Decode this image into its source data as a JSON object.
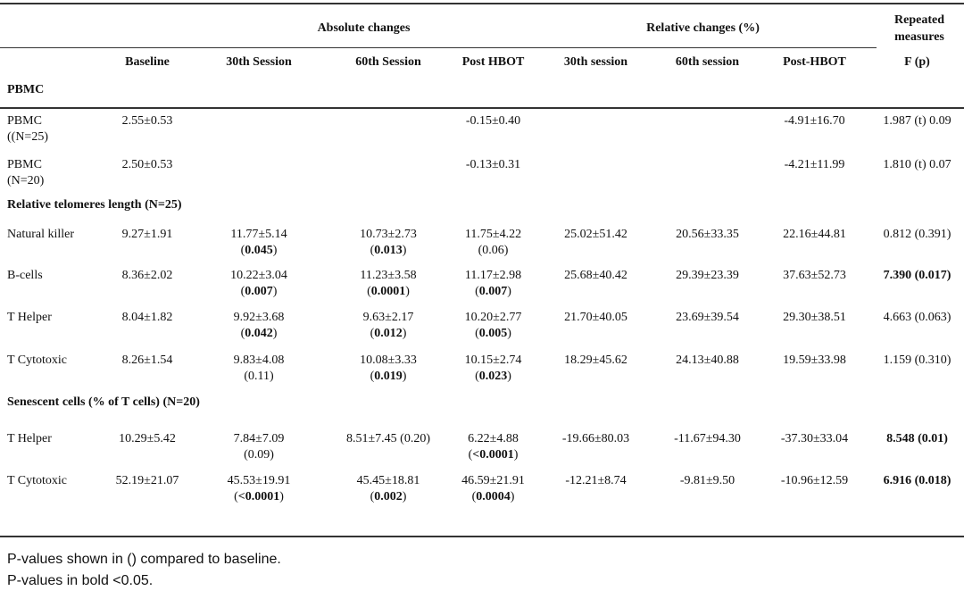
{
  "header": {
    "group_absolute": "Absolute changes",
    "group_relative": "Relative changes (%)",
    "group_repeated": "Repeated measures",
    "columns": [
      "",
      "Baseline",
      "30th Session",
      "60th Session",
      "Post HBOT",
      "30th session",
      "60th session",
      "Post-HBOT",
      "F (p)"
    ]
  },
  "sections": [
    {
      "title": "PBMC",
      "rows": [
        {
          "label": "PBMC ((N=25)",
          "cells": [
            {
              "v": "2.55±0.53"
            },
            {
              "v": ""
            },
            {
              "v": ""
            },
            {
              "v": "-0.15±0.40"
            },
            {
              "v": ""
            },
            {
              "v": ""
            },
            {
              "v": "-4.91±16.70"
            },
            {
              "v": "1.987 (t) 0.09"
            }
          ]
        },
        {
          "label": "PBMC (N=20)",
          "cells": [
            {
              "v": "2.50±0.53"
            },
            {
              "v": ""
            },
            {
              "v": ""
            },
            {
              "v": "-0.13±0.31"
            },
            {
              "v": ""
            },
            {
              "v": ""
            },
            {
              "v": "-4.21±11.99"
            },
            {
              "v": "1.810 (t) 0.07"
            }
          ]
        }
      ]
    },
    {
      "title": "Relative telomeres length (N=25)",
      "rows": [
        {
          "label": "Natural killer",
          "cells": [
            {
              "v": "9.27±1.91"
            },
            {
              "v": "11.77±5.14",
              "p": "0.045",
              "pb": true
            },
            {
              "v": "10.73±2.73",
              "p": "0.013",
              "pb": true
            },
            {
              "v": "11.75±4.22",
              "p": "0.06",
              "pb": false
            },
            {
              "v": "25.02±51.42"
            },
            {
              "v": "20.56±33.35"
            },
            {
              "v": "22.16±44.81"
            },
            {
              "v": "0.812 (0.391)"
            }
          ]
        },
        {
          "label": "B-cells",
          "cells": [
            {
              "v": "8.36±2.02"
            },
            {
              "v": "10.22±3.04",
              "p": "0.007",
              "pb": true
            },
            {
              "v": "11.23±3.58",
              "p": "0.0001",
              "pb": true
            },
            {
              "v": "11.17±2.98",
              "p": "0.007",
              "pb": true
            },
            {
              "v": "25.68±40.42"
            },
            {
              "v": "29.39±23.39"
            },
            {
              "v": "37.63±52.73"
            },
            {
              "v": "7.390 (0.017)",
              "b": true
            }
          ]
        },
        {
          "label": "T Helper",
          "cells": [
            {
              "v": "8.04±1.82"
            },
            {
              "v": "9.92±3.68",
              "p": "0.042",
              "pb": true
            },
            {
              "v": "9.63±2.17",
              "p": "0.012",
              "pb": true
            },
            {
              "v": "10.20±2.77",
              "p": "0.005",
              "pb": true
            },
            {
              "v": "21.70±40.05"
            },
            {
              "v": "23.69±39.54"
            },
            {
              "v": "29.30±38.51"
            },
            {
              "v": "4.663 (0.063)"
            }
          ]
        },
        {
          "label": "T Cytotoxic",
          "cells": [
            {
              "v": "8.26±1.54"
            },
            {
              "v": "9.83±4.08",
              "p": "0.11",
              "pb": false
            },
            {
              "v": "10.08±3.33",
              "p": "0.019",
              "pb": true
            },
            {
              "v": "10.15±2.74",
              "p": "0.023",
              "pb": true
            },
            {
              "v": "18.29±45.62"
            },
            {
              "v": "24.13±40.88"
            },
            {
              "v": "19.59±33.98"
            },
            {
              "v": "1.159 (0.310)"
            }
          ]
        }
      ]
    },
    {
      "title": "Senescent cells (% of T cells) (N=20)",
      "rows": [
        {
          "label": "T Helper",
          "cells": [
            {
              "v": "10.29±5.42"
            },
            {
              "v": "7.84±7.09",
              "p": "0.09",
              "pb": false
            },
            {
              "v": "8.51±7.45 (0.20)"
            },
            {
              "v": "6.22±4.88",
              "p": "<0.0001",
              "pb": true
            },
            {
              "v": "-19.66±80.03"
            },
            {
              "v": "-11.67±94.30"
            },
            {
              "v": "-37.30±33.04"
            },
            {
              "v": "8.548 (0.01)",
              "b": true
            }
          ]
        },
        {
          "label": "T Cytotoxic",
          "cells": [
            {
              "v": "52.19±21.07"
            },
            {
              "v": "45.53±19.91",
              "p": "<0.0001",
              "pb": true
            },
            {
              "v": "45.45±18.81",
              "p": "0.002",
              "pb": true
            },
            {
              "v": "46.59±21.91",
              "p": "0.0004",
              "pb": true
            },
            {
              "v": "-12.21±8.74"
            },
            {
              "v": "-9.81±9.50"
            },
            {
              "v": "-10.96±12.59"
            },
            {
              "v": "6.916 (0.018)",
              "b": true
            }
          ]
        }
      ]
    }
  ],
  "footnotes": [
    "P-values shown in () compared to baseline.",
    "P-values in bold <0.05."
  ]
}
